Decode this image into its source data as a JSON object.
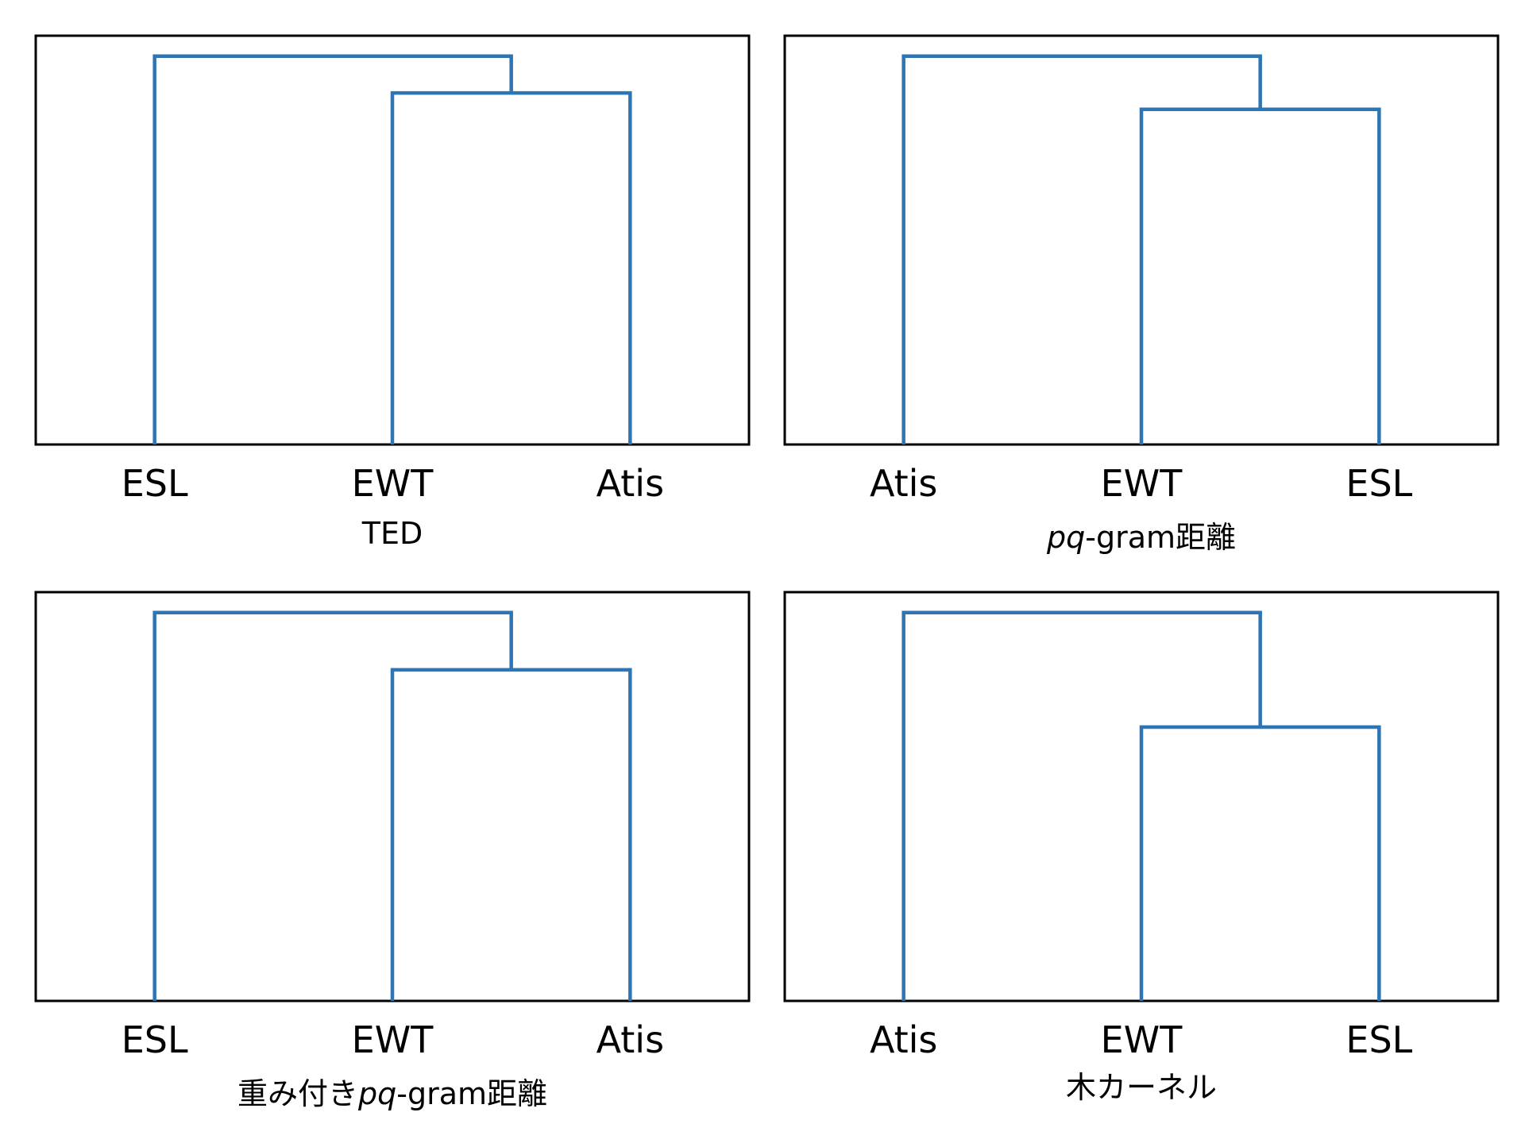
{
  "chart_data": [
    {
      "type": "dendrogram",
      "title": "TED",
      "leaves": [
        "ESL",
        "EWT",
        "Atis"
      ],
      "merges": [
        {
          "pair": [
            "EWT",
            "Atis"
          ],
          "height": 0.86
        },
        {
          "pair": [
            "ESL",
            "EWT+Atis"
          ],
          "height": 0.95
        }
      ],
      "ylim": [
        0,
        1
      ],
      "grid": false,
      "color": "#2e75b6"
    },
    {
      "type": "dendrogram",
      "title_italic": "pq",
      "title_rest": "-gram距離",
      "leaves": [
        "Atis",
        "EWT",
        "ESL"
      ],
      "merges": [
        {
          "pair": [
            "EWT",
            "ESL"
          ],
          "height": 0.82
        },
        {
          "pair": [
            "Atis",
            "EWT+ESL"
          ],
          "height": 0.95
        }
      ],
      "ylim": [
        0,
        1
      ],
      "grid": false,
      "color": "#2e75b6"
    },
    {
      "type": "dendrogram",
      "title_prefix": "重み付き",
      "title_italic": "pq",
      "title_rest": "-gram距離",
      "leaves": [
        "ESL",
        "EWT",
        "Atis"
      ],
      "merges": [
        {
          "pair": [
            "EWT",
            "Atis"
          ],
          "height": 0.81
        },
        {
          "pair": [
            "ESL",
            "EWT+Atis"
          ],
          "height": 0.95
        }
      ],
      "ylim": [
        0,
        1
      ],
      "grid": false,
      "color": "#2e75b6"
    },
    {
      "type": "dendrogram",
      "title": "木カーネル",
      "leaves": [
        "Atis",
        "EWT",
        "ESL"
      ],
      "merges": [
        {
          "pair": [
            "EWT",
            "ESL"
          ],
          "height": 0.67
        },
        {
          "pair": [
            "Atis",
            "EWT+ESL"
          ],
          "height": 0.95
        }
      ],
      "ylim": [
        0,
        1
      ],
      "grid": false,
      "color": "#2e75b6"
    }
  ]
}
